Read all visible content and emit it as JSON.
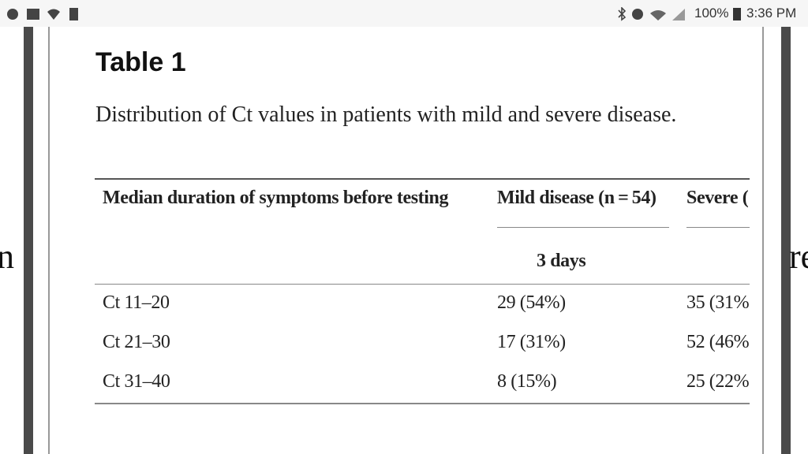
{
  "status_bar": {
    "battery": "100%",
    "time": "3:36 PM"
  },
  "background_text": {
    "left": "n",
    "right": "re"
  },
  "article": {
    "title": "Table 1",
    "caption": "Distribution of Ct values in patients with mild and severe disease.",
    "table": {
      "header": [
        "Median duration of symptoms before testing",
        "Mild disease (n = 54)",
        "Severe ("
      ],
      "subheader": "3 days",
      "rows": [
        [
          "Ct 11–20",
          "29 (54%)",
          "35 (31%"
        ],
        [
          "Ct 21–30",
          "17 (31%)",
          "52 (46%"
        ],
        [
          "Ct 31–40",
          "8 (15%)",
          "25 (22%"
        ]
      ]
    }
  }
}
